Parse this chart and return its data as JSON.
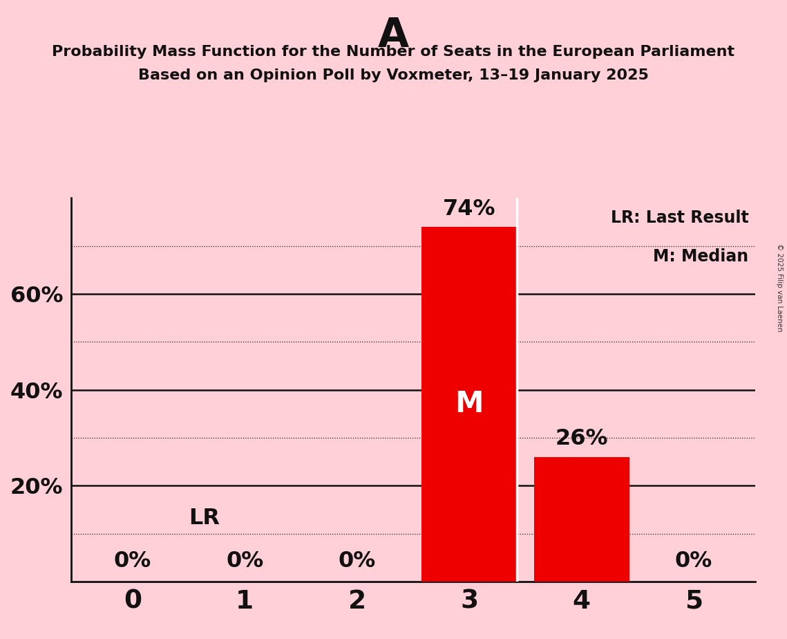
{
  "title_letter": "A",
  "title_line1": "Probability Mass Function for the Number of Seats in the European Parliament",
  "title_line2": "Based on an Opinion Poll by Voxmeter, 13–19 January 2025",
  "copyright": "© 2025 Filip van Laenen",
  "categories": [
    0,
    1,
    2,
    3,
    4,
    5
  ],
  "values": [
    0,
    0,
    0,
    74,
    26,
    0
  ],
  "bar_color_red": "#EE0000",
  "background_color": "#FFD0D8",
  "ylabel_ticks": [
    20,
    40,
    60
  ],
  "dotted_lines": [
    10,
    30,
    50,
    70
  ],
  "lr_value": 10,
  "median_bar": 3,
  "legend_lr": "LR: Last Result",
  "legend_m": "M: Median",
  "percent_labels": [
    "0%",
    "0%",
    "0%",
    "74%",
    "26%",
    "0%"
  ],
  "ylim": [
    0,
    80
  ],
  "xlim": [
    -0.55,
    5.55
  ]
}
